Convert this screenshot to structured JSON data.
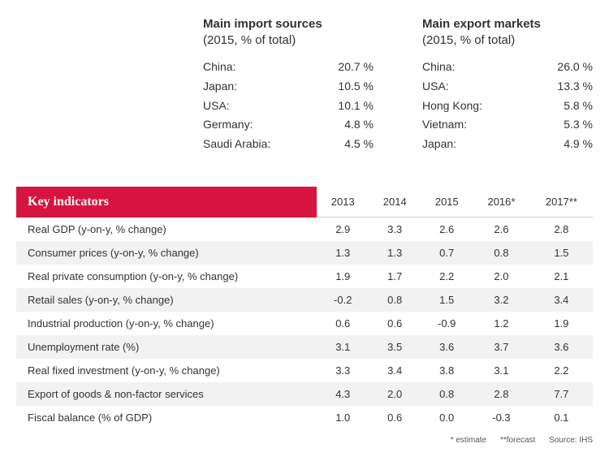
{
  "imports": {
    "title": "Main import sources",
    "subtitle": "(2015, % of total)",
    "rows": [
      {
        "label": "China:",
        "value": "20.7 %"
      },
      {
        "label": "Japan:",
        "value": "10.5 %"
      },
      {
        "label": "USA:",
        "value": "10.1 %"
      },
      {
        "label": "Germany:",
        "value": "4.8 %"
      },
      {
        "label": "Saudi Arabia:",
        "value": "4.5 %"
      }
    ]
  },
  "exports": {
    "title": "Main export markets",
    "subtitle": "(2015, % of total)",
    "rows": [
      {
        "label": "China:",
        "value": "26.0 %"
      },
      {
        "label": "USA:",
        "value": "13.3 %"
      },
      {
        "label": "Hong Kong:",
        "value": "5.8 %"
      },
      {
        "label": "Vietnam:",
        "value": "5.3 %"
      },
      {
        "label": "Japan:",
        "value": "4.9 %"
      }
    ]
  },
  "indicators": {
    "header_label": "Key indicators",
    "years": [
      "2013",
      "2014",
      "2015",
      "2016*",
      "2017**"
    ],
    "rows": [
      {
        "label": "Real GDP  (y-on-y, % change)",
        "vals": [
          "2.9",
          "3.3",
          "2.6",
          "2.6",
          "2.8"
        ]
      },
      {
        "label": "Consumer prices (y-on-y, % change)",
        "vals": [
          "1.3",
          "1.3",
          "0.7",
          "0.8",
          "1.5"
        ]
      },
      {
        "label": "Real private consumption (y-on-y, % change)",
        "vals": [
          "1.9",
          "1.7",
          "2.2",
          "2.0",
          "2.1"
        ]
      },
      {
        "label": "Retail sales (y-on-y, % change)",
        "vals": [
          "-0.2",
          "0.8",
          "1.5",
          "3.2",
          "3.4"
        ]
      },
      {
        "label": "Industrial production  (y-on-y, % change)",
        "vals": [
          "0.6",
          "0.6",
          "-0.9",
          "1.2",
          "1.9"
        ]
      },
      {
        "label": "Unemployment rate (%)",
        "vals": [
          "3.1",
          "3.5",
          "3.6",
          "3.7",
          "3.6"
        ]
      },
      {
        "label": "Real fixed investment (y-on-y, % change)",
        "vals": [
          "3.3",
          "3.4",
          "3.8",
          "3.1",
          "2.2"
        ]
      },
      {
        "label": "Export of goods & non-factor services",
        "vals": [
          "4.3",
          "2.0",
          "0.8",
          "2.8",
          "7.7"
        ]
      },
      {
        "label": "Fiscal balance (% of GDP)",
        "vals": [
          "1.0",
          "0.6",
          "0.0",
          "-0.3",
          "0.1"
        ]
      }
    ]
  },
  "footnote": {
    "estimate": "* estimate",
    "forecast": "**forecast",
    "source": "Source: IHS"
  },
  "styles": {
    "accent_color": "#d71440",
    "row_alt_bg": "#f2f2f2",
    "text_color": "#333333",
    "border_color": "#d0d0d0",
    "header_font": "Georgia",
    "body_font": "Arial",
    "header_fontsize": 16,
    "body_fontsize": 13
  }
}
